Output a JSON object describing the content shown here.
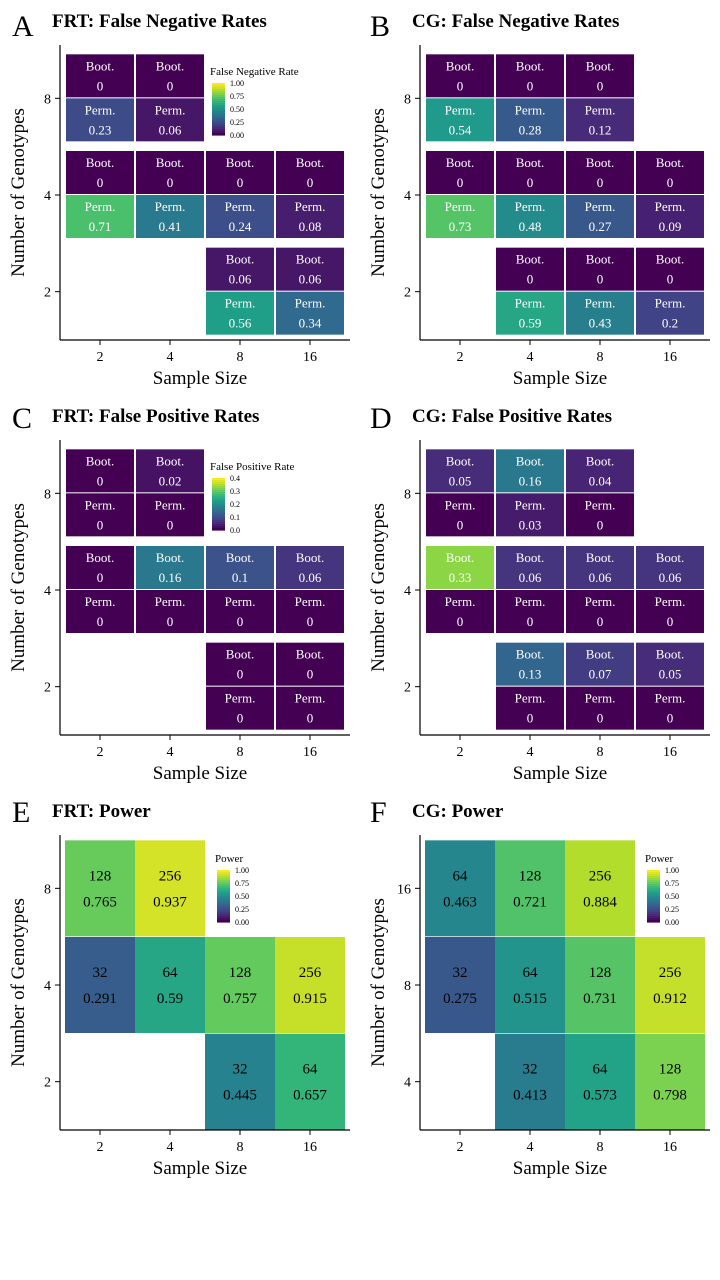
{
  "chart_data": [
    {
      "panel": "A",
      "title": "FRT: False Negative Rates",
      "type": "heatmap",
      "xlabel": "Sample Size",
      "ylabel": "Number of Genotypes",
      "x_ticks": [
        "2",
        "4",
        "8",
        "16"
      ],
      "y_ticks": [
        "2",
        "4",
        "8"
      ],
      "legend": {
        "title": "False Negative Rate",
        "ticks": [
          "1.00",
          "0.75",
          "0.50",
          "0.25",
          "0.00"
        ],
        "max": 1.0
      },
      "cells": [
        {
          "x": "2",
          "y": "8",
          "boot": "0",
          "perm": "0.23"
        },
        {
          "x": "4",
          "y": "8",
          "boot": "0",
          "perm": "0.06"
        },
        {
          "x": "2",
          "y": "4",
          "boot": "0",
          "perm": "0.71"
        },
        {
          "x": "4",
          "y": "4",
          "boot": "0",
          "perm": "0.41"
        },
        {
          "x": "8",
          "y": "4",
          "boot": "0",
          "perm": "0.24"
        },
        {
          "x": "16",
          "y": "4",
          "boot": "0",
          "perm": "0.08"
        },
        {
          "x": "8",
          "y": "2",
          "boot": "0.06",
          "perm": "0.56"
        },
        {
          "x": "16",
          "y": "2",
          "boot": "0.06",
          "perm": "0.34"
        }
      ]
    },
    {
      "panel": "B",
      "title": "CG: False Negative Rates",
      "type": "heatmap",
      "xlabel": "Sample Size",
      "ylabel": "Number of Genotypes",
      "x_ticks": [
        "2",
        "4",
        "8",
        "16"
      ],
      "y_ticks": [
        "2",
        "4",
        "8"
      ],
      "legend": null,
      "cells": [
        {
          "x": "2",
          "y": "8",
          "boot": "0",
          "perm": "0.54"
        },
        {
          "x": "4",
          "y": "8",
          "boot": "0",
          "perm": "0.28"
        },
        {
          "x": "8",
          "y": "8",
          "boot": "0",
          "perm": "0.12"
        },
        {
          "x": "2",
          "y": "4",
          "boot": "0",
          "perm": "0.73"
        },
        {
          "x": "4",
          "y": "4",
          "boot": "0",
          "perm": "0.48"
        },
        {
          "x": "8",
          "y": "4",
          "boot": "0",
          "perm": "0.27"
        },
        {
          "x": "16",
          "y": "4",
          "boot": "0",
          "perm": "0.09"
        },
        {
          "x": "4",
          "y": "2",
          "boot": "0",
          "perm": "0.59"
        },
        {
          "x": "8",
          "y": "2",
          "boot": "0",
          "perm": "0.43"
        },
        {
          "x": "16",
          "y": "2",
          "boot": "0",
          "perm": "0.2"
        }
      ]
    },
    {
      "panel": "C",
      "title": "FRT: False Positive Rates",
      "type": "heatmap",
      "xlabel": "Sample Size",
      "ylabel": "Number of Genotypes",
      "x_ticks": [
        "2",
        "4",
        "8",
        "16"
      ],
      "y_ticks": [
        "2",
        "4",
        "8"
      ],
      "legend": {
        "title": "False Positive Rate",
        "ticks": [
          "0.4",
          "0.3",
          "0.2",
          "0.1",
          "0.0"
        ],
        "max": 0.4
      },
      "cells": [
        {
          "x": "2",
          "y": "8",
          "boot": "0",
          "perm": "0"
        },
        {
          "x": "4",
          "y": "8",
          "boot": "0.02",
          "perm": "0"
        },
        {
          "x": "2",
          "y": "4",
          "boot": "0",
          "perm": "0"
        },
        {
          "x": "4",
          "y": "4",
          "boot": "0.16",
          "perm": "0"
        },
        {
          "x": "8",
          "y": "4",
          "boot": "0.1",
          "perm": "0"
        },
        {
          "x": "16",
          "y": "4",
          "boot": "0.06",
          "perm": "0"
        },
        {
          "x": "8",
          "y": "2",
          "boot": "0",
          "perm": "0"
        },
        {
          "x": "16",
          "y": "2",
          "boot": "0",
          "perm": "0"
        }
      ]
    },
    {
      "panel": "D",
      "title": "CG: False Positive Rates",
      "type": "heatmap",
      "xlabel": "Sample Size",
      "ylabel": "Number of Genotypes",
      "x_ticks": [
        "2",
        "4",
        "8",
        "16"
      ],
      "y_ticks": [
        "2",
        "4",
        "8"
      ],
      "legend": null,
      "cells": [
        {
          "x": "2",
          "y": "8",
          "boot": "0.05",
          "perm": "0"
        },
        {
          "x": "4",
          "y": "8",
          "boot": "0.16",
          "perm": "0.03"
        },
        {
          "x": "8",
          "y": "8",
          "boot": "0.04",
          "perm": "0"
        },
        {
          "x": "2",
          "y": "4",
          "boot": "0.33",
          "perm": "0"
        },
        {
          "x": "4",
          "y": "4",
          "boot": "0.06",
          "perm": "0"
        },
        {
          "x": "8",
          "y": "4",
          "boot": "0.06",
          "perm": "0"
        },
        {
          "x": "16",
          "y": "4",
          "boot": "0.06",
          "perm": "0"
        },
        {
          "x": "4",
          "y": "2",
          "boot": "0.13",
          "perm": "0"
        },
        {
          "x": "8",
          "y": "2",
          "boot": "0.07",
          "perm": "0"
        },
        {
          "x": "16",
          "y": "2",
          "boot": "0.05",
          "perm": "0"
        }
      ]
    },
    {
      "panel": "E",
      "title": "FRT: Power",
      "type": "heatmap",
      "xlabel": "Sample Size",
      "ylabel": "Number of Genotypes",
      "x_ticks": [
        "2",
        "4",
        "8",
        "16"
      ],
      "y_ticks": [
        "2",
        "4",
        "8"
      ],
      "legend": {
        "title": "Power",
        "ticks": [
          "1.00",
          "0.75",
          "0.50",
          "0.25",
          "0.00"
        ],
        "max": 1.0
      },
      "cells": [
        {
          "x": "2",
          "y": "8",
          "n": "128",
          "power": "0.765"
        },
        {
          "x": "4",
          "y": "8",
          "n": "256",
          "power": "0.937"
        },
        {
          "x": "2",
          "y": "4",
          "n": "32",
          "power": "0.291"
        },
        {
          "x": "4",
          "y": "4",
          "n": "64",
          "power": "0.59"
        },
        {
          "x": "8",
          "y": "4",
          "n": "128",
          "power": "0.757"
        },
        {
          "x": "16",
          "y": "4",
          "n": "256",
          "power": "0.915"
        },
        {
          "x": "8",
          "y": "2",
          "n": "32",
          "power": "0.445"
        },
        {
          "x": "16",
          "y": "2",
          "n": "64",
          "power": "0.657"
        }
      ]
    },
    {
      "panel": "F",
      "title": "CG: Power",
      "type": "heatmap",
      "xlabel": "Sample Size",
      "ylabel": "Number of Genotypes",
      "x_ticks": [
        "2",
        "4",
        "8",
        "16"
      ],
      "y_ticks": [
        "4",
        "8",
        "16"
      ],
      "legend": {
        "title": "Power",
        "ticks": [
          "1.00",
          "0.75",
          "0.50",
          "0.25",
          "0.00"
        ],
        "max": 1.0
      },
      "cells": [
        {
          "x": "2",
          "y": "16",
          "n": "64",
          "power": "0.463"
        },
        {
          "x": "4",
          "y": "16",
          "n": "128",
          "power": "0.721"
        },
        {
          "x": "8",
          "y": "16",
          "n": "256",
          "power": "0.884"
        },
        {
          "x": "2",
          "y": "8",
          "n": "32",
          "power": "0.275"
        },
        {
          "x": "4",
          "y": "8",
          "n": "64",
          "power": "0.515"
        },
        {
          "x": "8",
          "y": "8",
          "n": "128",
          "power": "0.731"
        },
        {
          "x": "16",
          "y": "8",
          "n": "256",
          "power": "0.912"
        },
        {
          "x": "4",
          "y": "4",
          "n": "32",
          "power": "0.413"
        },
        {
          "x": "8",
          "y": "4",
          "n": "64",
          "power": "0.573"
        },
        {
          "x": "16",
          "y": "4",
          "n": "128",
          "power": "0.798"
        }
      ]
    }
  ],
  "labels": {
    "boot": "Boot.",
    "perm": "Perm."
  },
  "colors": {
    "viridis": [
      "#440154",
      "#482878",
      "#3e4a89",
      "#31688e",
      "#26828e",
      "#1f9e89",
      "#35b779",
      "#6ece58",
      "#b5de2b",
      "#fde725"
    ],
    "cell_border": "#ffffff",
    "axis": "#000000"
  }
}
